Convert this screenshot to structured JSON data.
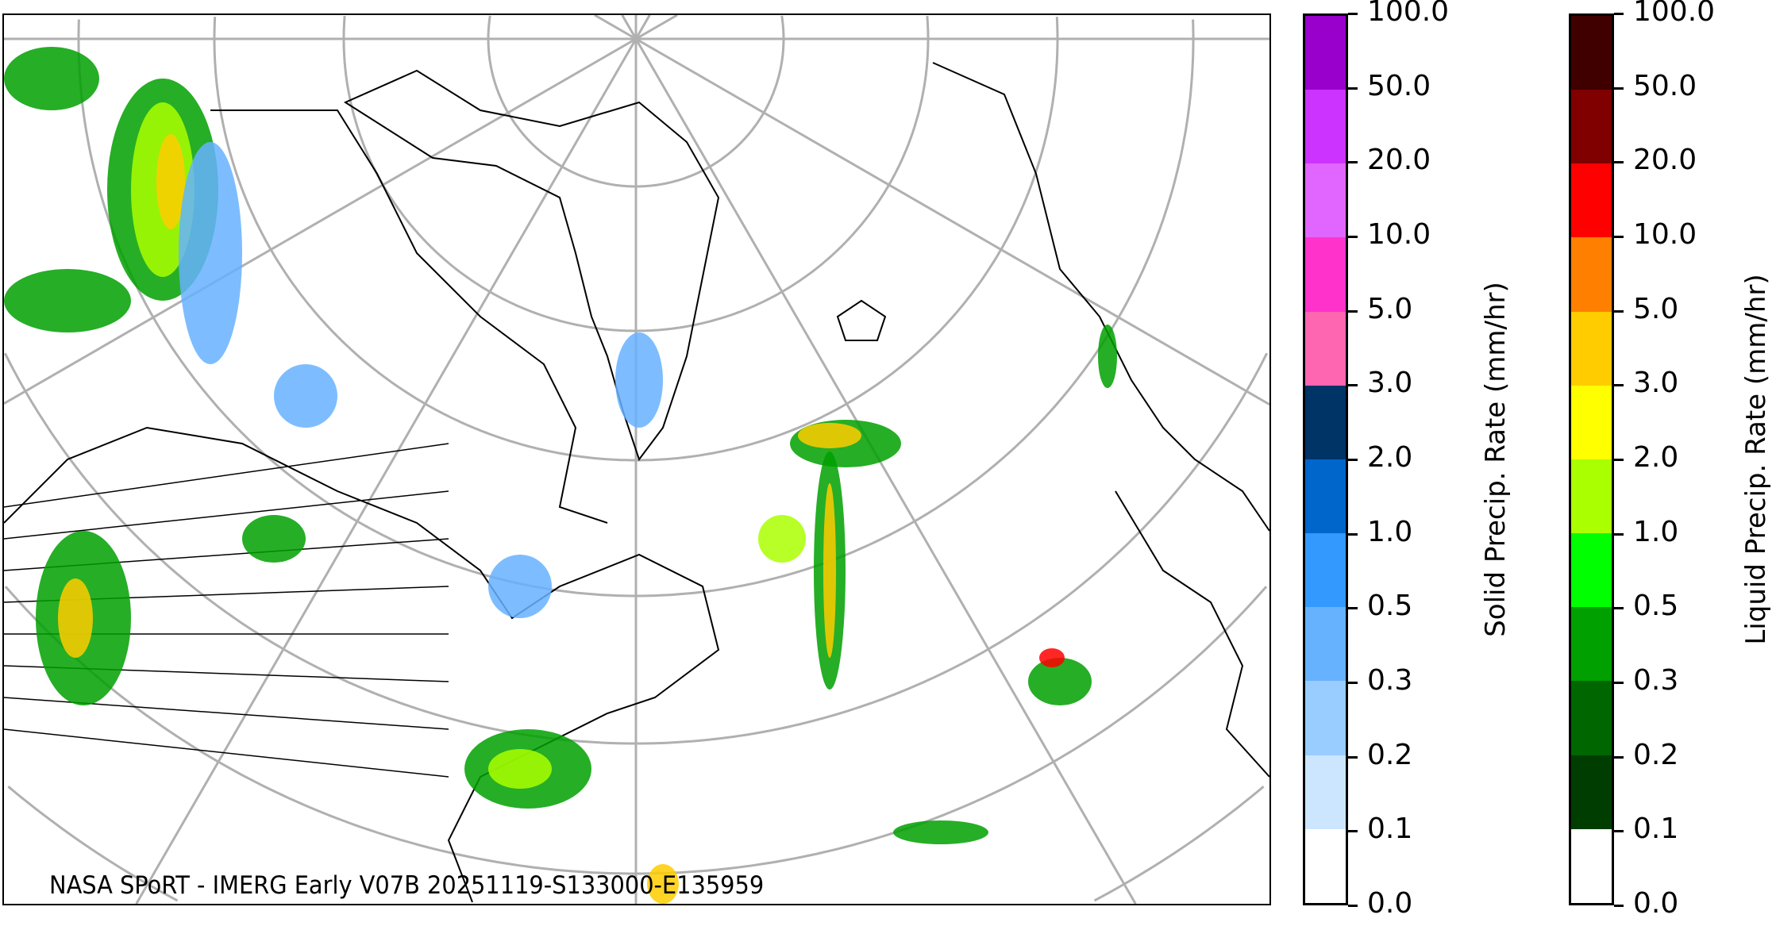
{
  "map": {
    "caption": "NASA SPoRT - IMERG Early V07B 20251119-S133000-E135959",
    "projection": "north-polar stereographic",
    "region": "North America, North Atlantic, Greenland, Europe"
  },
  "colorbars": [
    {
      "label": "Solid Precip. Rate (mm/hr)",
      "ticks": [
        "0.0",
        "0.1",
        "0.2",
        "0.3",
        "0.5",
        "1.0",
        "2.0",
        "3.0",
        "5.0",
        "10.0",
        "20.0",
        "50.0",
        "100.0"
      ],
      "colors": [
        "#ffffff",
        "#cce6ff",
        "#99ccff",
        "#66b2ff",
        "#3399ff",
        "#0066cc",
        "#003366",
        "#ff66b2",
        "#ff33cc",
        "#e066ff",
        "#cc33ff",
        "#9900cc"
      ]
    },
    {
      "label": "Liquid Precip. Rate (mm/hr)",
      "ticks": [
        "0.0",
        "0.1",
        "0.2",
        "0.3",
        "0.5",
        "1.0",
        "2.0",
        "3.0",
        "5.0",
        "10.0",
        "20.0",
        "50.0",
        "100.0"
      ],
      "colors": [
        "#ffffff",
        "#003d00",
        "#006600",
        "#00a000",
        "#00ff00",
        "#aaff00",
        "#ffff00",
        "#ffcc00",
        "#ff8000",
        "#ff0000",
        "#800000",
        "#400000"
      ]
    }
  ]
}
